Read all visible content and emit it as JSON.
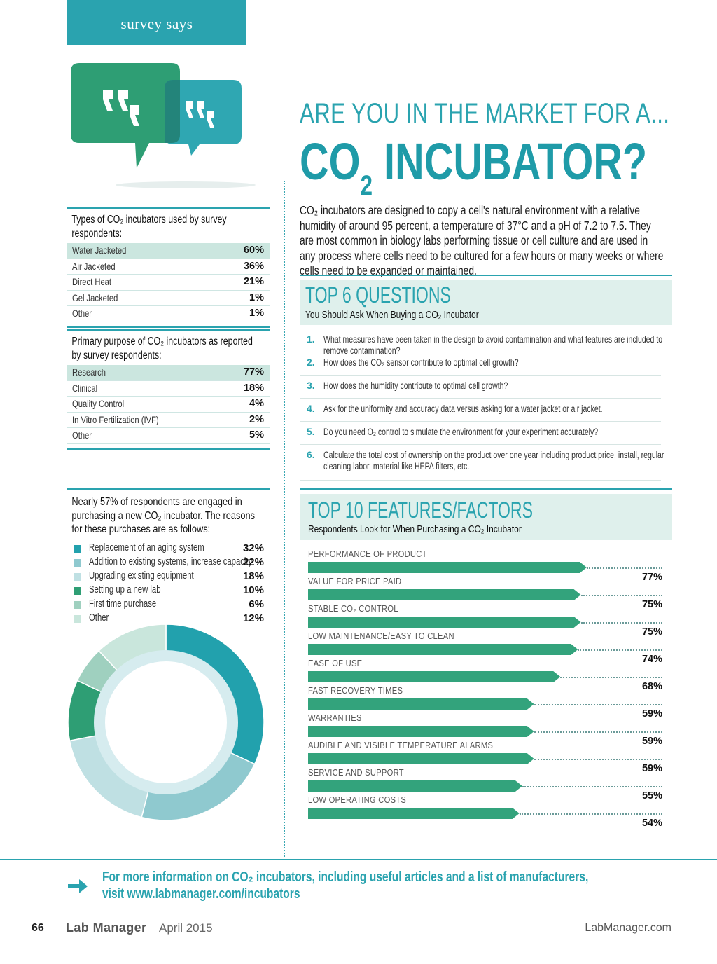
{
  "header": {
    "tab_label": "survey says"
  },
  "headline": {
    "kicker": "ARE YOU IN THE MARKET FOR A...",
    "title_main": "CO",
    "title_sub": "2",
    "title_rest": " INCUBATOR?"
  },
  "intro": "CO₂ incubators are designed to copy a cell's natural environment with a relative humidity of around 95 percent, a temperature of 37°C and a pH of 7.2 to 7.5. They are most common in biology labs performing tissue or cell culture and are used in any process where cells need to be cultured for a few hours or many weeks or where cells need to be expanded or maintained.",
  "types_table": {
    "caption": "Types of CO₂ incubators used by survey respondents:",
    "rows": [
      {
        "label": "Water Jacketed",
        "value": "60%"
      },
      {
        "label": "Air Jacketed",
        "value": "36%"
      },
      {
        "label": "Direct Heat",
        "value": "21%"
      },
      {
        "label": "Gel Jacketed",
        "value": "1%"
      },
      {
        "label": "Other",
        "value": "1%"
      }
    ]
  },
  "purpose_table": {
    "caption": "Primary purpose of CO₂ incubators as reported by survey respondents:",
    "rows": [
      {
        "label": "Research",
        "value": "77%"
      },
      {
        "label": "Clinical",
        "value": "18%"
      },
      {
        "label": "Quality Control",
        "value": "4%"
      },
      {
        "label": "In Vitro Fertilization (IVF)",
        "value": "2%"
      },
      {
        "label": "Other",
        "value": "5%"
      }
    ]
  },
  "reasons": {
    "caption": "Nearly 57% of respondents are engaged in purchasing a new CO₂ incubator. The reasons for these purchases are as follows:",
    "items": [
      {
        "label": "Replacement of an aging system",
        "value": "32%",
        "color": "#22a1ad"
      },
      {
        "label": "Addition to existing systems, increase capacity",
        "value": "22%",
        "color": "#8fc9cf"
      },
      {
        "label": "Upgrading existing equipment",
        "value": "18%",
        "color": "#bfe0e3"
      },
      {
        "label": "Setting up a new lab",
        "value": "10%",
        "color": "#2e9e74"
      },
      {
        "label": "First time purchase",
        "value": "6%",
        "color": "#9fd0bf"
      },
      {
        "label": "Other",
        "value": "12%",
        "color": "#c9e6dc"
      }
    ]
  },
  "chart_data": {
    "type": "pie",
    "categories": [
      "Replacement of an aging system",
      "Addition to existing systems, increase capacity",
      "Upgrading existing equipment",
      "Setting up a new lab",
      "First time purchase",
      "Other"
    ],
    "values": [
      32,
      22,
      18,
      10,
      6,
      12
    ]
  },
  "questions": {
    "title": "TOP 6 QUESTIONS",
    "subtitle": "You Should Ask When Buying a CO₂ Incubator",
    "items": [
      {
        "num": "1.",
        "text": "What measures have been taken in the design to avoid contamination and what features are included to remove contamination?"
      },
      {
        "num": "2.",
        "text": "How does the CO₂ sensor contribute to optimal cell growth?"
      },
      {
        "num": "3.",
        "text": "How does the humidity contribute to optimal cell growth?"
      },
      {
        "num": "4.",
        "text": "Ask for the uniformity and accuracy data versus asking for a water jacket or air jacket."
      },
      {
        "num": "5.",
        "text": "Do you need O₂ control to simulate the environment for your experiment accurately?"
      },
      {
        "num": "6.",
        "text": "Calculate the total cost of ownership on the product over one year including product price, install, regular cleaning labor, material like HEPA filters, etc."
      }
    ]
  },
  "features": {
    "title": "TOP 10 FEATURES/FACTORS",
    "subtitle": "Respondents Look for When Purchasing a CO₂ Incubator",
    "color": "#33a37c",
    "items": [
      {
        "label": "PERFORMANCE OF PRODUCT",
        "value": 77,
        "text": "77%"
      },
      {
        "label": "VALUE FOR PRICE PAID",
        "value": 75,
        "text": "75%"
      },
      {
        "label": "STABLE CO₂ CONTROL",
        "value": 75,
        "text": "75%"
      },
      {
        "label": "LOW MAINTENANCE/EASY TO CLEAN",
        "value": 74,
        "text": "74%"
      },
      {
        "label": "EASE OF USE",
        "value": 68,
        "text": "68%"
      },
      {
        "label": "FAST RECOVERY TIMES",
        "value": 59,
        "text": "59%"
      },
      {
        "label": "WARRANTIES",
        "value": 59,
        "text": "59%"
      },
      {
        "label": "AUDIBLE AND VISIBLE TEMPERATURE ALARMS",
        "value": 59,
        "text": "59%"
      },
      {
        "label": "SERVICE AND SUPPORT",
        "value": 55,
        "text": "55%"
      },
      {
        "label": "LOW OPERATING COSTS",
        "value": 54,
        "text": "54%"
      }
    ]
  },
  "footer": {
    "more_line1": "For more information on CO₂ incubators, including useful articles and a list of manufacturers,",
    "more_line2": "visit www.labmanager.com/incubators",
    "page_number": "66",
    "magazine": "Lab Manager",
    "date": "April 2015",
    "site": "LabManager.com"
  }
}
